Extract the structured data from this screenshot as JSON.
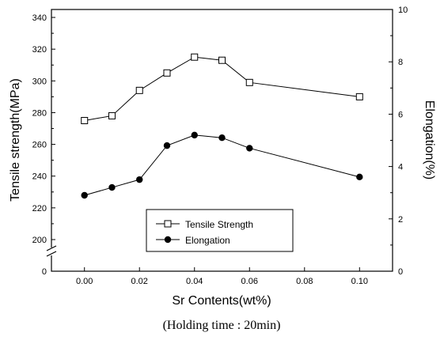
{
  "chart_data": {
    "type": "line",
    "xlabel": "Sr Contents(wt%)",
    "caption": "(Holding time : 20min)",
    "x": [
      0.0,
      0.01,
      0.02,
      0.03,
      0.04,
      0.05,
      0.06,
      0.1
    ],
    "x_ticks": [
      "0.00",
      "0.02",
      "0.04",
      "0.06",
      "0.08",
      "0.10"
    ],
    "x_tick_values": [
      0.0,
      0.02,
      0.04,
      0.06,
      0.08,
      0.1
    ],
    "xlim": [
      -0.012,
      0.112
    ],
    "left_axis": {
      "label": "Tensile strength(MPa)",
      "ticks": [
        "0",
        "200",
        "220",
        "240",
        "260",
        "280",
        "300",
        "320",
        "340"
      ],
      "broken": true,
      "ylim": [
        200,
        345
      ]
    },
    "right_axis": {
      "label": "Elongation(%)",
      "ticks": [
        "0",
        "2",
        "4",
        "6",
        "8",
        "10"
      ],
      "ylim": [
        0,
        10
      ]
    },
    "series": [
      {
        "name": "Tensile Strength",
        "axis": "left",
        "marker": "open-square",
        "values": [
          275,
          278,
          294,
          305,
          315,
          313,
          299,
          290
        ]
      },
      {
        "name": "Elongation",
        "axis": "right",
        "marker": "filled-circle",
        "values": [
          2.9,
          3.2,
          3.5,
          4.8,
          5.2,
          5.1,
          4.7,
          3.6
        ]
      }
    ],
    "legend_position": "lower-center",
    "grid": false
  }
}
